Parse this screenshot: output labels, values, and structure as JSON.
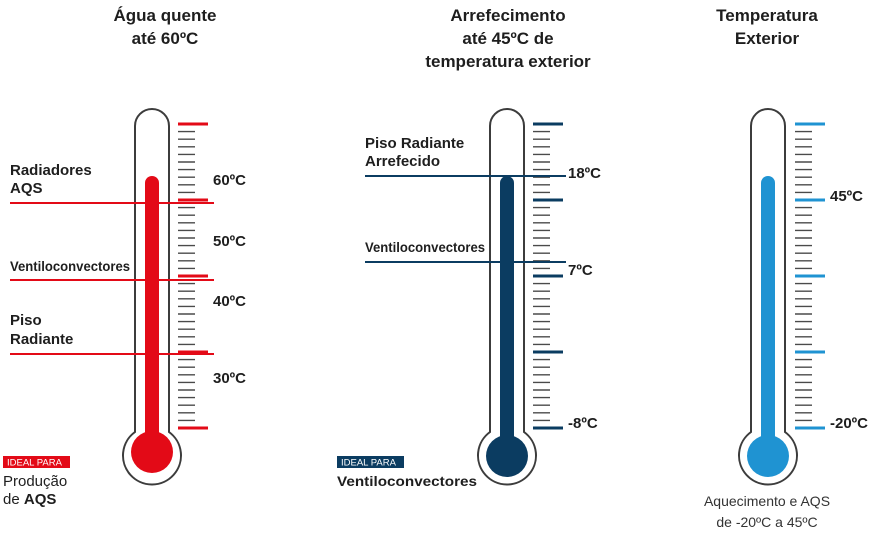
{
  "columns": [
    {
      "title": [
        "Água quente",
        "até 60ºC"
      ],
      "color": "#e30a17",
      "scale": [
        "60ºC",
        "50ºC",
        "40ºC",
        "30ºC"
      ],
      "levels": [
        {
          "lines": [
            "Radiadores",
            "AQS"
          ]
        },
        {
          "lines": [
            "Ventiloconvectores"
          ]
        },
        {
          "lines": [
            "Piso",
            "Radiante"
          ]
        }
      ],
      "badge": "IDEAL PARA",
      "caption": {
        "line1": "Produção",
        "line2_prefix": "de ",
        "line2_bold": "AQS"
      }
    },
    {
      "title": [
        "Arrefecimento",
        "até 45ºC de",
        "temperatura exterior"
      ],
      "color": "#0b3c61",
      "scale": [
        "18ºC",
        "7ºC",
        "-8ºC"
      ],
      "levels": [
        {
          "lines": [
            "Piso Radiante",
            "Arrefecido"
          ]
        },
        {
          "lines": [
            "Ventiloconvectores"
          ]
        }
      ],
      "badge": "IDEAL PARA",
      "caption": {
        "line1": "Ventiloconvectores"
      }
    },
    {
      "title": [
        "Temperatura",
        "Exterior"
      ],
      "color": "#1f93d2",
      "scale": [
        "45ºC",
        "-20ºC"
      ],
      "footer": [
        "Aquecimento e AQS",
        "de -20ºC a 45ºC"
      ]
    }
  ]
}
